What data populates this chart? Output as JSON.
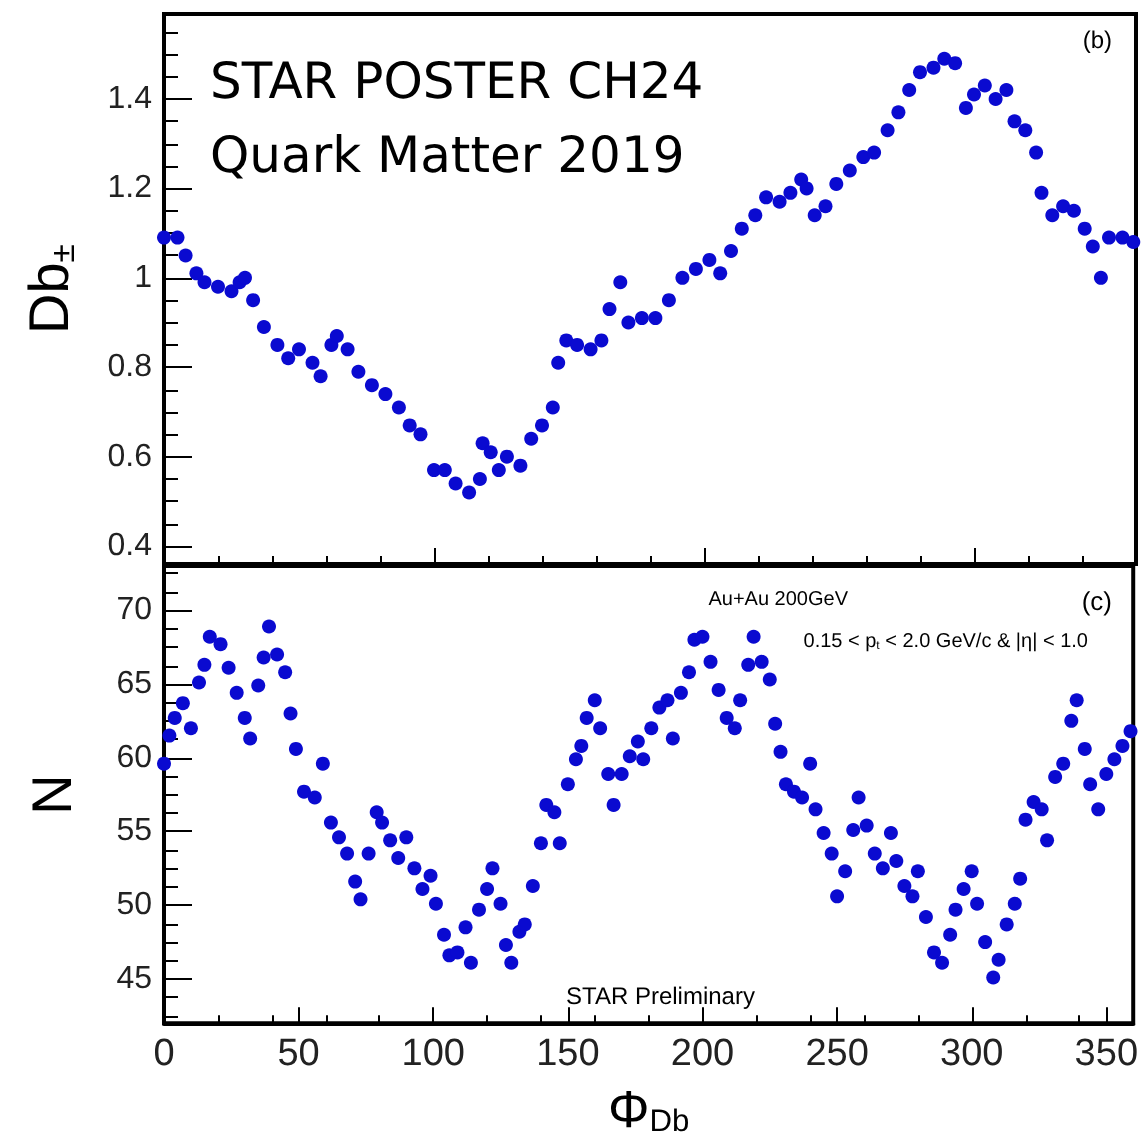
{
  "chart_data": [
    {
      "type": "scatter",
      "ylabel": "Db$_{±}$",
      "xlim": [
        0,
        360
      ],
      "ylim": [
        0.36,
        1.59
      ],
      "yticks": [
        0.4,
        0.6,
        0.8,
        1,
        1.2,
        1.4
      ],
      "tick_labels": "y",
      "marker": "circle",
      "grid": false,
      "annotations": [
        "STAR POSTER CH24",
        "Quark Matter 2019",
        "(b)"
      ],
      "series": [
        {
          "color": "#0a0ad0",
          "x": [
            0,
            5,
            8,
            12,
            15,
            20,
            25,
            28,
            30,
            33,
            37,
            42,
            46,
            50,
            55,
            58,
            62,
            64,
            68,
            72,
            77,
            82,
            87,
            91,
            95,
            100,
            104,
            108,
            113,
            117,
            118,
            121,
            124,
            127,
            132,
            136,
            140,
            144,
            146,
            149,
            153,
            158,
            162,
            165,
            169,
            172,
            177,
            182,
            187,
            192,
            197,
            202,
            206,
            210,
            214,
            219,
            223,
            228,
            232,
            236,
            238,
            241,
            245,
            249,
            254,
            259,
            263,
            268,
            272,
            276,
            280,
            285,
            289,
            293,
            297,
            300,
            304,
            308,
            312,
            315,
            319,
            323,
            325,
            329,
            333,
            337,
            341,
            344,
            347,
            350,
            355,
            359
          ],
          "values": [
            1.09,
            1.09,
            1.05,
            1.01,
            0.99,
            0.98,
            0.97,
            0.99,
            1.0,
            0.95,
            0.89,
            0.85,
            0.82,
            0.84,
            0.81,
            0.78,
            0.85,
            0.87,
            0.84,
            0.79,
            0.76,
            0.74,
            0.71,
            0.67,
            0.65,
            0.57,
            0.57,
            0.54,
            0.52,
            0.55,
            0.63,
            0.61,
            0.57,
            0.6,
            0.58,
            0.64,
            0.67,
            0.71,
            0.81,
            0.86,
            0.85,
            0.84,
            0.86,
            0.93,
            0.99,
            0.9,
            0.91,
            0.91,
            0.95,
            1.0,
            1.02,
            1.04,
            1.01,
            1.06,
            1.11,
            1.14,
            1.18,
            1.17,
            1.19,
            1.22,
            1.2,
            1.14,
            1.16,
            1.21,
            1.24,
            1.27,
            1.28,
            1.33,
            1.37,
            1.42,
            1.46,
            1.47,
            1.49,
            1.48,
            1.38,
            1.41,
            1.43,
            1.4,
            1.42,
            1.35,
            1.33,
            1.28,
            1.19,
            1.14,
            1.16,
            1.15,
            1.11,
            1.07,
            1.0,
            1.09,
            1.09,
            1.08
          ]
        }
      ]
    },
    {
      "type": "scatter",
      "xlabel": "Φ$_{Db}$",
      "ylabel": "N",
      "xlim": [
        0,
        360
      ],
      "xticks": [
        0,
        50,
        100,
        150,
        200,
        250,
        300,
        350
      ],
      "ylim": [
        42,
        73
      ],
      "yticks": [
        45,
        50,
        55,
        60,
        65,
        70
      ],
      "marker": "circle",
      "grid": false,
      "annotations": [
        "Au+Au 200GeV",
        "0.15 < p$_{t}$ < 2.0 GeV/c & |η| < 1.0",
        "(c)",
        "STAR Preliminary"
      ],
      "series": [
        {
          "color": "#0a0ad0",
          "x": [
            0,
            2,
            4,
            7,
            10,
            13,
            15,
            17,
            21,
            24,
            27,
            30,
            32,
            35,
            37,
            39,
            42,
            45,
            47,
            49,
            52,
            56,
            59,
            62,
            65,
            68,
            71,
            73,
            76,
            79,
            81,
            84,
            87,
            90,
            93,
            96,
            99,
            101,
            104,
            106,
            109,
            112,
            114,
            117,
            120,
            122,
            125,
            127,
            129,
            132,
            134,
            137,
            140,
            142,
            145,
            147,
            150,
            153,
            155,
            157,
            160,
            162,
            165,
            167,
            170,
            173,
            176,
            178,
            181,
            184,
            187,
            189,
            192,
            195,
            197,
            200,
            203,
            206,
            209,
            212,
            214,
            217,
            219,
            222,
            225,
            227,
            229,
            231,
            234,
            237,
            240,
            242,
            245,
            248,
            250,
            253,
            256,
            258,
            261,
            264,
            267,
            270,
            272,
            275,
            278,
            280,
            283,
            286,
            289,
            292,
            294,
            297,
            300,
            302,
            305,
            308,
            310,
            313,
            316,
            318,
            320,
            323,
            326,
            328,
            331,
            334,
            337,
            339,
            342,
            344,
            347,
            350,
            353,
            356,
            359
          ],
          "values": [
            59.6,
            61.5,
            62.7,
            63.7,
            62.0,
            65.1,
            66.3,
            68.2,
            67.7,
            66.1,
            64.4,
            62.7,
            61.3,
            64.9,
            66.8,
            68.9,
            67.0,
            65.8,
            63.0,
            60.6,
            57.7,
            57.3,
            59.6,
            55.6,
            54.6,
            53.5,
            51.6,
            50.4,
            53.5,
            56.3,
            55.6,
            54.4,
            53.2,
            54.6,
            52.5,
            51.1,
            52.0,
            50.1,
            48.0,
            46.6,
            46.8,
            48.5,
            46.1,
            49.7,
            51.1,
            52.5,
            50.1,
            47.3,
            46.1,
            48.2,
            48.7,
            51.3,
            54.2,
            56.8,
            56.3,
            54.2,
            58.2,
            59.9,
            60.8,
            62.7,
            63.9,
            62.0,
            58.9,
            56.8,
            58.9,
            60.1,
            61.1,
            59.9,
            62.0,
            63.4,
            63.9,
            61.3,
            64.4,
            65.8,
            68.0,
            68.2,
            66.5,
            64.6,
            62.7,
            62.0,
            63.9,
            66.3,
            68.2,
            66.5,
            65.3,
            62.3,
            60.4,
            58.2,
            57.7,
            57.3,
            59.6,
            56.5,
            54.9,
            53.5,
            50.6,
            52.3,
            55.1,
            57.3,
            55.4,
            53.5,
            52.5,
            54.9,
            53.0,
            51.3,
            50.6,
            52.3,
            49.2,
            46.8,
            46.1,
            48.0,
            49.7,
            51.1,
            52.3,
            50.1,
            47.5,
            45.1,
            46.3,
            48.7,
            50.1,
            51.8,
            55.8,
            57.0,
            56.5,
            54.4,
            58.7,
            59.6,
            62.5,
            63.9,
            60.6,
            58.2,
            56.5,
            58.9,
            59.9,
            60.8,
            61.8
          ]
        }
      ]
    }
  ]
}
